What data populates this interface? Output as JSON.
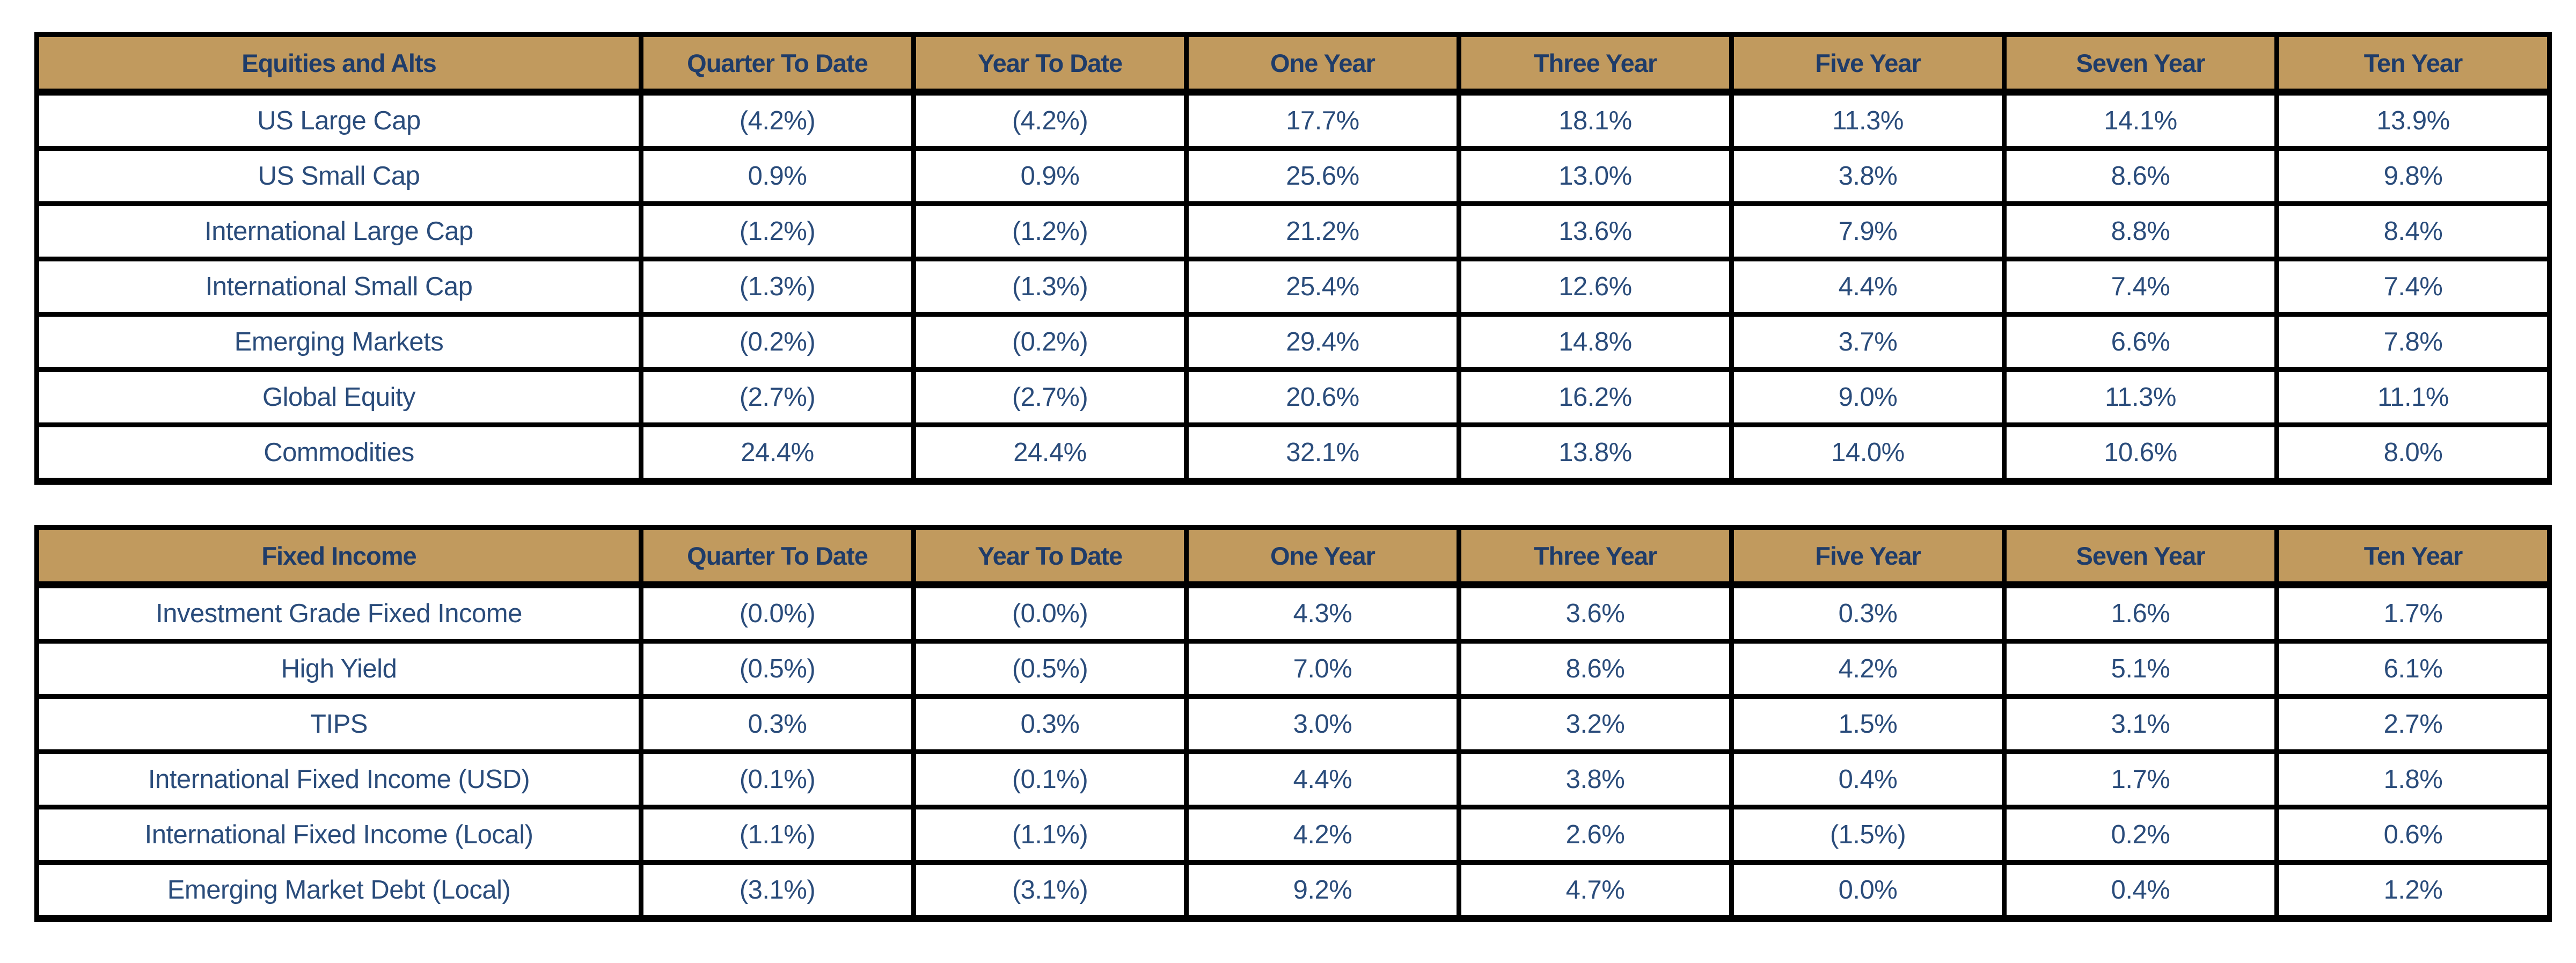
{
  "columns": [
    "Quarter To Date",
    "Year To Date",
    "One Year",
    "Three Year",
    "Five Year",
    "Seven Year",
    "Ten Year"
  ],
  "tables": [
    {
      "title": "Equities and Alts",
      "rows": [
        {
          "label": "US Large Cap",
          "values": [
            "(4.2%)",
            "(4.2%)",
            "17.7%",
            "18.1%",
            "11.3%",
            "14.1%",
            "13.9%"
          ]
        },
        {
          "label": "US Small Cap",
          "values": [
            "0.9%",
            "0.9%",
            "25.6%",
            "13.0%",
            "3.8%",
            "8.6%",
            "9.8%"
          ]
        },
        {
          "label": "International Large Cap",
          "values": [
            "(1.2%)",
            "(1.2%)",
            "21.2%",
            "13.6%",
            "7.9%",
            "8.8%",
            "8.4%"
          ]
        },
        {
          "label": "International Small Cap",
          "values": [
            "(1.3%)",
            "(1.3%)",
            "25.4%",
            "12.6%",
            "4.4%",
            "7.4%",
            "7.4%"
          ]
        },
        {
          "label": "Emerging Markets",
          "values": [
            "(0.2%)",
            "(0.2%)",
            "29.4%",
            "14.8%",
            "3.7%",
            "6.6%",
            "7.8%"
          ]
        },
        {
          "label": "Global Equity",
          "values": [
            "(2.7%)",
            "(2.7%)",
            "20.6%",
            "16.2%",
            "9.0%",
            "11.3%",
            "11.1%"
          ]
        },
        {
          "label": "Commodities",
          "values": [
            "24.4%",
            "24.4%",
            "32.1%",
            "13.8%",
            "14.0%",
            "10.6%",
            "8.0%"
          ]
        }
      ]
    },
    {
      "title": "Fixed Income",
      "rows": [
        {
          "label": "Investment Grade Fixed Income",
          "values": [
            "(0.0%)",
            "(0.0%)",
            "4.3%",
            "3.6%",
            "0.3%",
            "1.6%",
            "1.7%"
          ]
        },
        {
          "label": "High Yield",
          "values": [
            "(0.5%)",
            "(0.5%)",
            "7.0%",
            "8.6%",
            "4.2%",
            "5.1%",
            "6.1%"
          ]
        },
        {
          "label": "TIPS",
          "values": [
            "0.3%",
            "0.3%",
            "3.0%",
            "3.2%",
            "1.5%",
            "3.1%",
            "2.7%"
          ]
        },
        {
          "label": "International Fixed Income (USD)",
          "values": [
            "(0.1%)",
            "(0.1%)",
            "4.4%",
            "3.8%",
            "0.4%",
            "1.7%",
            "1.8%"
          ]
        },
        {
          "label": "International Fixed Income (Local)",
          "values": [
            "(1.1%)",
            "(1.1%)",
            "4.2%",
            "2.6%",
            "(1.5%)",
            "0.2%",
            "0.6%"
          ]
        },
        {
          "label": "Emerging Market Debt (Local)",
          "values": [
            "(3.1%)",
            "(3.1%)",
            "9.2%",
            "4.7%",
            "0.0%",
            "0.4%",
            "1.2%"
          ]
        }
      ]
    }
  ],
  "colors": {
    "page_bg": "#FFFFFF",
    "header_bg": "#C19A5E",
    "header_text": "#1F3C69",
    "body_text": "#2A4C7B",
    "border": "#000000"
  }
}
